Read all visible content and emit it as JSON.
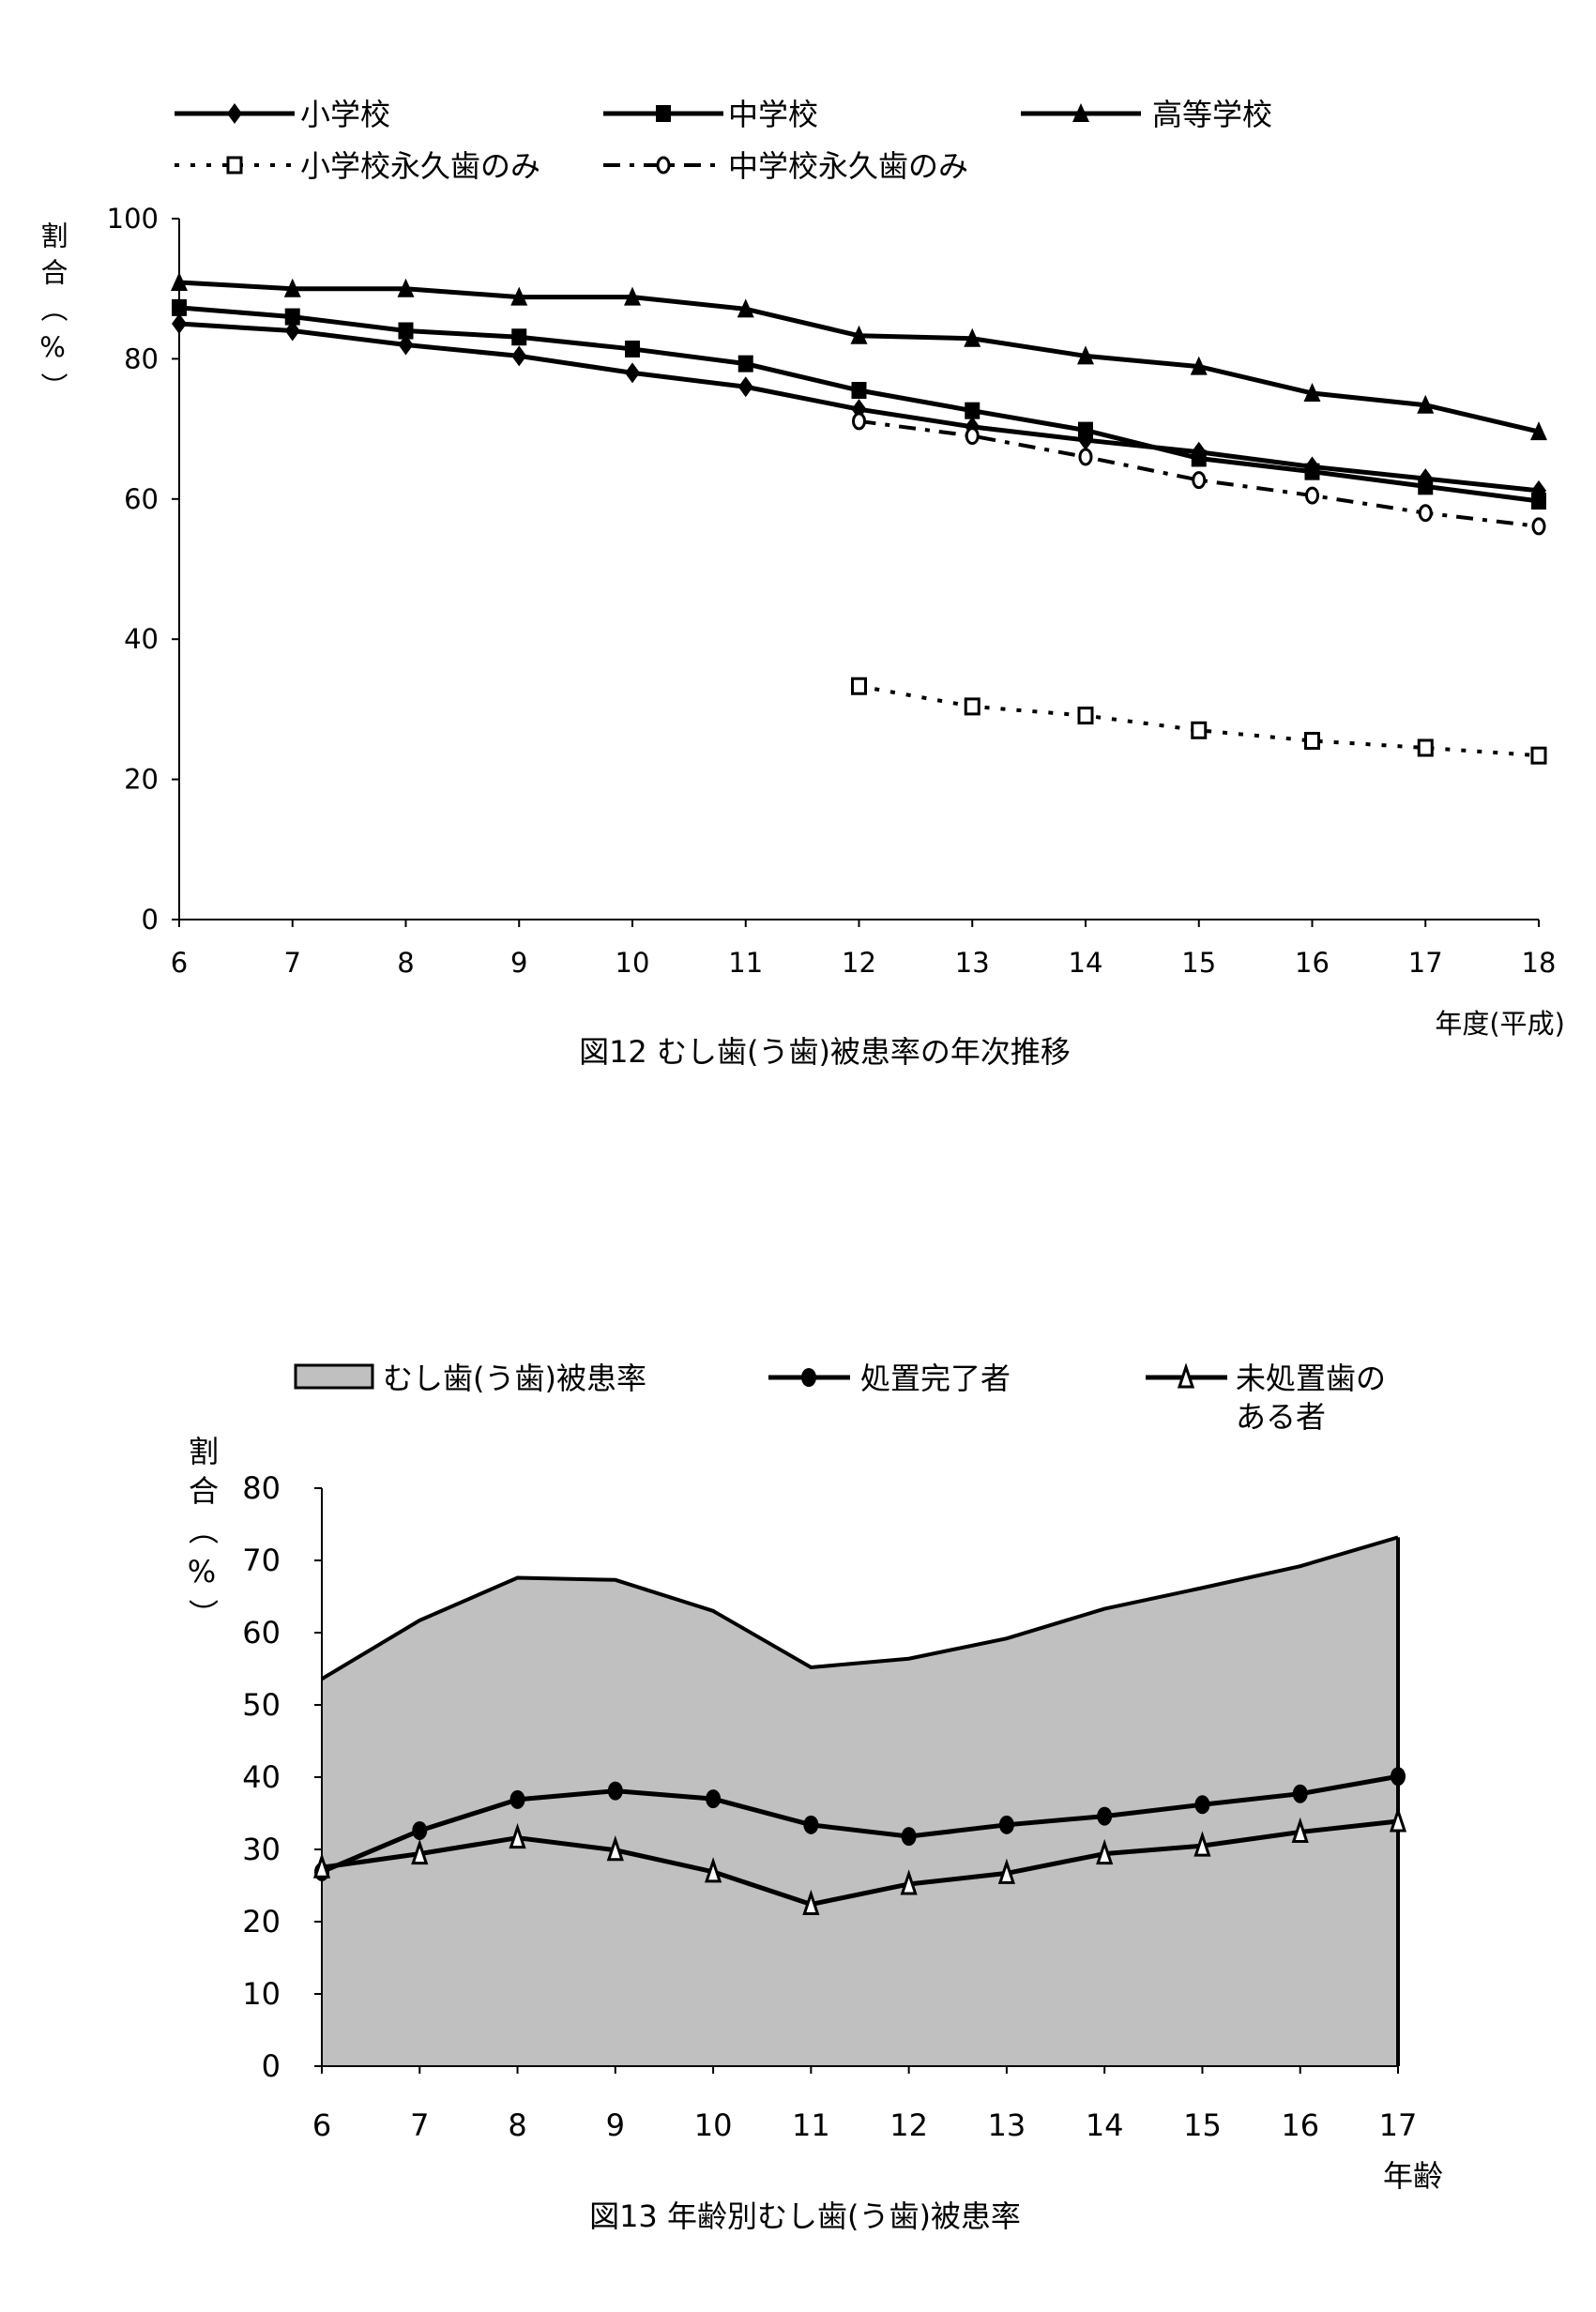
{
  "chart_data": [
    {
      "type": "line",
      "title": "図12  むし歯(う歯)被患率の年次推移",
      "xlabel": "年度(平成)",
      "ylabel": "割合（%）",
      "ylim": [
        0,
        100
      ],
      "yticks": [
        "0",
        "20",
        "40",
        "60",
        "80",
        "100"
      ],
      "x": [
        "6",
        "7",
        "8",
        "9",
        "10",
        "11",
        "12",
        "13",
        "14",
        "15",
        "16",
        "17",
        "18"
      ],
      "legend_position": "top",
      "series": [
        {
          "name": "小学校",
          "marker": "diamond",
          "style": "solid",
          "values": [
            85.0,
            84.0,
            82.0,
            80.4,
            78.0,
            76.0,
            72.8,
            70.3,
            68.4,
            66.7,
            64.6,
            62.9,
            61.2
          ]
        },
        {
          "name": "中学校",
          "marker": "square",
          "style": "solid",
          "values": [
            87.3,
            86.0,
            84.0,
            83.1,
            81.4,
            79.3,
            75.5,
            72.6,
            69.8,
            65.8,
            63.9,
            61.8,
            59.7
          ]
        },
        {
          "name": "高等学校",
          "marker": "triangle",
          "style": "solid",
          "values": [
            90.9,
            90.0,
            90.0,
            88.8,
            88.8,
            87.1,
            83.3,
            82.9,
            80.4,
            78.9,
            75.1,
            73.4,
            69.6
          ]
        },
        {
          "name": "小学校永久歯のみ",
          "marker": "open-square",
          "style": "dotted",
          "values": [
            null,
            null,
            null,
            null,
            null,
            null,
            33.3,
            30.4,
            29.1,
            27.0,
            25.5,
            24.5,
            23.4
          ]
        },
        {
          "name": "中学校永久歯のみ",
          "marker": "open-circle",
          "style": "dashdot",
          "values": [
            null,
            null,
            null,
            null,
            null,
            null,
            71.1,
            69.0,
            66.0,
            62.7,
            60.5,
            58.0,
            56.1
          ]
        }
      ]
    },
    {
      "type": "area",
      "title": "図13  年齢別むし歯(う歯)被患率",
      "xlabel": "年齢",
      "ylabel": "割合（%）",
      "ylim": [
        0,
        80
      ],
      "yticks": [
        "0",
        "10",
        "20",
        "30",
        "40",
        "50",
        "60",
        "70",
        "80"
      ],
      "x": [
        "6",
        "7",
        "8",
        "9",
        "10",
        "11",
        "12",
        "13",
        "14",
        "15",
        "16",
        "17"
      ],
      "legend_position": "top",
      "series": [
        {
          "name": "むし歯(う歯)被患率",
          "kind": "area",
          "color": "#c0c0c0",
          "values": [
            53.6,
            61.7,
            67.6,
            67.3,
            63.0,
            55.2,
            56.4,
            59.2,
            63.3,
            66.2,
            69.2,
            73.2
          ]
        },
        {
          "name": "処置完了者",
          "kind": "line",
          "marker": "circle",
          "values": [
            26.9,
            32.6,
            36.9,
            38.1,
            37.0,
            33.4,
            31.8,
            33.4,
            34.6,
            36.2,
            37.7,
            40.1
          ]
        },
        {
          "name": "未処置歯のある者",
          "name_lines": [
            "未処置歯の",
            "ある者"
          ],
          "kind": "line",
          "marker": "open-triangle",
          "values": [
            27.5,
            29.4,
            31.6,
            29.9,
            26.9,
            22.4,
            25.2,
            26.7,
            29.4,
            30.5,
            32.4,
            33.9
          ]
        }
      ]
    }
  ]
}
